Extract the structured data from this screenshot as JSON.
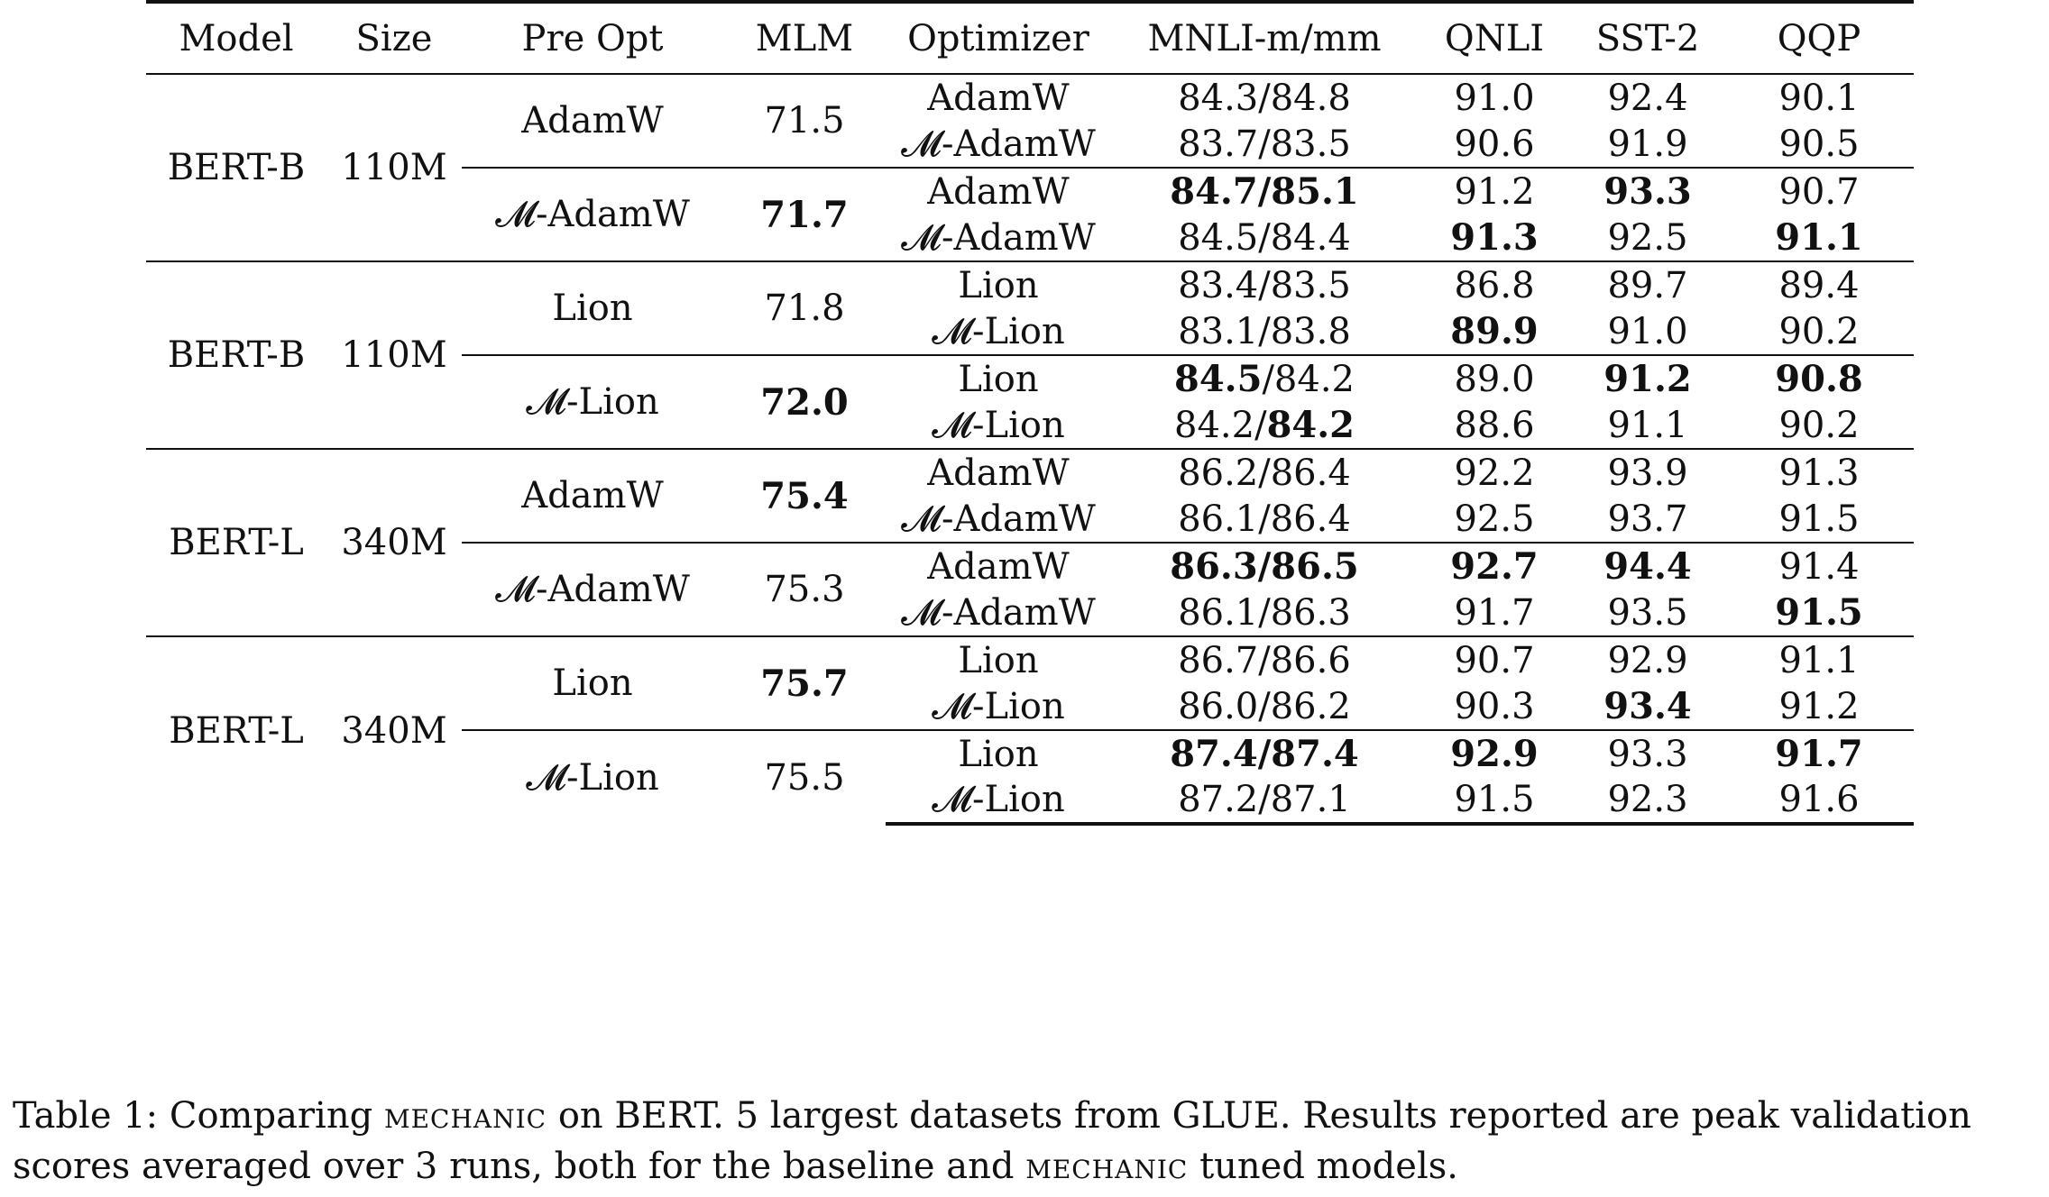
{
  "headers": [
    "Model",
    "Size",
    "Pre Opt",
    "MLM",
    "Optimizer",
    "MNLI-m/mm",
    "QNLI",
    "SST-2",
    "QQP"
  ],
  "blocks": [
    {
      "model": "BERT-B",
      "size": "110M",
      "groups": [
        {
          "pre_opt": "AdamW",
          "mlm": "71.5",
          "mlm_bold": false,
          "rows": [
            {
              "optimizer": "AdamW",
              "mnli": [
                {
                  "t": "84.3/84.8",
                  "b": false
                }
              ],
              "qnli": {
                "t": "91.0",
                "b": false
              },
              "sst2": {
                "t": "92.4",
                "b": false
              },
              "qqp": {
                "t": "90.1",
                "b": false
              }
            },
            {
              "optimizer": "𝓜-AdamW",
              "mnli": [
                {
                  "t": "83.7/83.5",
                  "b": false
                }
              ],
              "qnli": {
                "t": "90.6",
                "b": false
              },
              "sst2": {
                "t": "91.9",
                "b": false
              },
              "qqp": {
                "t": "90.5",
                "b": false
              }
            }
          ]
        },
        {
          "pre_opt": "𝓜-AdamW",
          "mlm": "71.7",
          "mlm_bold": true,
          "rows": [
            {
              "optimizer": "AdamW",
              "mnli": [
                {
                  "t": "84.7/85.1",
                  "b": true
                }
              ],
              "qnli": {
                "t": "91.2",
                "b": false
              },
              "sst2": {
                "t": "93.3",
                "b": true
              },
              "qqp": {
                "t": "90.7",
                "b": false
              }
            },
            {
              "optimizer": "𝓜-AdamW",
              "mnli": [
                {
                  "t": "84.5/84.4",
                  "b": false
                }
              ],
              "qnli": {
                "t": "91.3",
                "b": true
              },
              "sst2": {
                "t": "92.5",
                "b": false
              },
              "qqp": {
                "t": "91.1",
                "b": true
              }
            }
          ]
        }
      ]
    },
    {
      "model": "BERT-B",
      "size": "110M",
      "groups": [
        {
          "pre_opt": "Lion",
          "mlm": "71.8",
          "mlm_bold": false,
          "rows": [
            {
              "optimizer": "Lion",
              "mnli": [
                {
                  "t": "83.4/83.5",
                  "b": false
                }
              ],
              "qnli": {
                "t": "86.8",
                "b": false
              },
              "sst2": {
                "t": "89.7",
                "b": false
              },
              "qqp": {
                "t": "89.4",
                "b": false
              }
            },
            {
              "optimizer": "𝓜-Lion",
              "mnli": [
                {
                  "t": "83.1/83.8",
                  "b": false
                }
              ],
              "qnli": {
                "t": "89.9",
                "b": true
              },
              "sst2": {
                "t": "91.0",
                "b": false
              },
              "qqp": {
                "t": "90.2",
                "b": false
              }
            }
          ]
        },
        {
          "pre_opt": "𝓜-Lion",
          "mlm": "72.0",
          "mlm_bold": true,
          "rows": [
            {
              "optimizer": "Lion",
              "mnli": [
                {
                  "t": "84.5",
                  "b": true
                },
                {
                  "t": "/84.2",
                  "b": false
                }
              ],
              "qnli": {
                "t": "89.0",
                "b": false
              },
              "sst2": {
                "t": "91.2",
                "b": true
              },
              "qqp": {
                "t": "90.8",
                "b": true
              }
            },
            {
              "optimizer": "𝓜-Lion",
              "mnli": [
                {
                  "t": "84.2/",
                  "b": false
                },
                {
                  "t": "84.2",
                  "b": true
                }
              ],
              "qnli": {
                "t": "88.6",
                "b": false
              },
              "sst2": {
                "t": "91.1",
                "b": false
              },
              "qqp": {
                "t": "90.2",
                "b": false
              }
            }
          ]
        }
      ]
    },
    {
      "model": "BERT-L",
      "size": "340M",
      "groups": [
        {
          "pre_opt": "AdamW",
          "mlm": "75.4",
          "mlm_bold": true,
          "rows": [
            {
              "optimizer": "AdamW",
              "mnli": [
                {
                  "t": "86.2/86.4",
                  "b": false
                }
              ],
              "qnli": {
                "t": "92.2",
                "b": false
              },
              "sst2": {
                "t": "93.9",
                "b": false
              },
              "qqp": {
                "t": "91.3",
                "b": false
              }
            },
            {
              "optimizer": "𝓜-AdamW",
              "mnli": [
                {
                  "t": "86.1/86.4",
                  "b": false
                }
              ],
              "qnli": {
                "t": "92.5",
                "b": false
              },
              "sst2": {
                "t": "93.7",
                "b": false
              },
              "qqp": {
                "t": "91.5",
                "b": false
              }
            }
          ]
        },
        {
          "pre_opt": "𝓜-AdamW",
          "mlm": "75.3",
          "mlm_bold": false,
          "rows": [
            {
              "optimizer": "AdamW",
              "mnli": [
                {
                  "t": "86.3/86.5",
                  "b": true
                }
              ],
              "qnli": {
                "t": "92.7",
                "b": true
              },
              "sst2": {
                "t": "94.4",
                "b": true
              },
              "qqp": {
                "t": "91.4",
                "b": false
              }
            },
            {
              "optimizer": "𝓜-AdamW",
              "mnli": [
                {
                  "t": "86.1/86.3",
                  "b": false
                }
              ],
              "qnli": {
                "t": "91.7",
                "b": false
              },
              "sst2": {
                "t": "93.5",
                "b": false
              },
              "qqp": {
                "t": "91.5",
                "b": true
              }
            }
          ]
        }
      ]
    },
    {
      "model": "BERT-L",
      "size": "340M",
      "groups": [
        {
          "pre_opt": "Lion",
          "mlm": "75.7",
          "mlm_bold": true,
          "rows": [
            {
              "optimizer": "Lion",
              "mnli": [
                {
                  "t": "86.7/86.6",
                  "b": false
                }
              ],
              "qnli": {
                "t": "90.7",
                "b": false
              },
              "sst2": {
                "t": "92.9",
                "b": false
              },
              "qqp": {
                "t": "91.1",
                "b": false
              }
            },
            {
              "optimizer": "𝓜-Lion",
              "mnli": [
                {
                  "t": "86.0/86.2",
                  "b": false
                }
              ],
              "qnli": {
                "t": "90.3",
                "b": false
              },
              "sst2": {
                "t": "93.4",
                "b": true
              },
              "qqp": {
                "t": "91.2",
                "b": false
              }
            }
          ]
        },
        {
          "pre_opt": "𝓜-Lion",
          "mlm": "75.5",
          "mlm_bold": false,
          "rows": [
            {
              "optimizer": "Lion",
              "mnli": [
                {
                  "t": "87.4/87.4",
                  "b": true
                }
              ],
              "qnli": {
                "t": "92.9",
                "b": true
              },
              "sst2": {
                "t": "93.3",
                "b": false
              },
              "qqp": {
                "t": "91.7",
                "b": true
              }
            },
            {
              "optimizer": "𝓜-Lion",
              "mnli": [
                {
                  "t": "87.2/87.1",
                  "b": false
                }
              ],
              "qnli": {
                "t": "91.5",
                "b": false
              },
              "sst2": {
                "t": "92.3",
                "b": false
              },
              "qqp": {
                "t": "91.6",
                "b": false
              }
            }
          ]
        }
      ]
    }
  ],
  "caption": {
    "label": "Table 1:",
    "part1": "Comparing",
    "method1": "mechanic",
    "part2": "on BERT. 5 largest datasets from GLUE. Results reported are peak validation scores averaged over 3 runs, both for the baseline and",
    "method2": "mechanic",
    "part3": "tuned models."
  }
}
